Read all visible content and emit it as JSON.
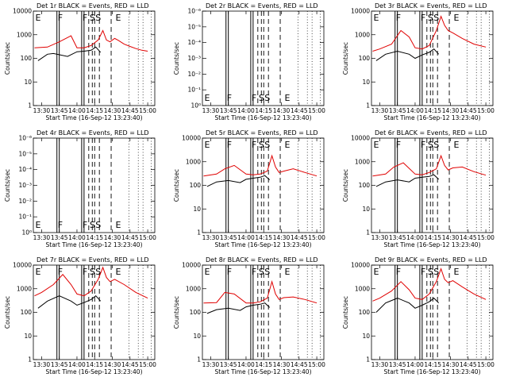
{
  "figure": {
    "xlabel": "Start Time (16-Sep-12 13:23:40)",
    "ylabel": "Counts/sec",
    "x_tick_labels": [
      "13:30",
      "13:45",
      "14:00",
      "14:15",
      "14:30",
      "14:45",
      "15:00"
    ]
  },
  "chart_data": [
    {
      "type": "line",
      "title": "Det 1r BLACK = Events, RED = LLD",
      "ylim": [
        1,
        10000
      ],
      "log": true,
      "y_tick_labels": [
        "1",
        "10",
        "100",
        "1000",
        "10000"
      ],
      "markers": [
        {
          "label": "E",
          "t": "13:24"
        },
        {
          "label": "F",
          "t": "13:43"
        },
        {
          "label": "F",
          "t": "14:04"
        },
        {
          "label": "S",
          "t": "14:10"
        },
        {
          "label": "S",
          "t": "14:15"
        },
        {
          "label": "E",
          "t": "14:32"
        }
      ],
      "series": [
        {
          "name": "RED",
          "color": "#e00000",
          "x": [
            "13:24",
            "13:35",
            "13:45",
            "13:55",
            "14:00",
            "14:06",
            "14:12",
            "14:18",
            "14:22",
            "14:25",
            "14:28",
            "14:32",
            "14:35",
            "14:40",
            "14:45",
            "14:50",
            "14:55",
            "15:00"
          ],
          "values": [
            280,
            300,
            500,
            900,
            280,
            280,
            350,
            600,
            1500,
            600,
            500,
            700,
            580,
            400,
            320,
            260,
            220,
            200
          ]
        },
        {
          "name": "BLACK",
          "color": "#000000",
          "x": [
            "13:27",
            "13:35",
            "13:40",
            "13:52",
            "14:00",
            "14:06",
            "14:12",
            "14:16",
            "14:20"
          ],
          "values": [
            80,
            150,
            160,
            120,
            190,
            200,
            220,
            300,
            180
          ]
        }
      ]
    },
    {
      "type": "line",
      "title": "Det 2r BLACK = Events, RED = LLD",
      "ylim": [
        1,
        1e-06
      ],
      "log": true,
      "y_tick_labels": [
        "10⁰",
        "10⁻¹",
        "10⁻²",
        "10⁻³",
        "10⁻⁴",
        "10⁻⁵",
        "10⁻⁶"
      ],
      "markers": [
        {
          "label": "E",
          "t": "13:24"
        },
        {
          "label": "F",
          "t": "13:43"
        },
        {
          "label": "F",
          "t": "14:04"
        },
        {
          "label": "S",
          "t": "14:10"
        },
        {
          "label": "S",
          "t": "14:15"
        },
        {
          "label": "E",
          "t": "14:32"
        }
      ],
      "series": []
    },
    {
      "type": "line",
      "title": "Det 3r BLACK = Events, RED = LLD",
      "ylim": [
        1,
        10000
      ],
      "log": true,
      "y_tick_labels": [
        "1",
        "10",
        "100",
        "1000",
        "10000"
      ],
      "markers": [
        {
          "label": "E",
          "t": "13:24"
        },
        {
          "label": "F",
          "t": "13:43"
        },
        {
          "label": "F",
          "t": "14:04"
        },
        {
          "label": "S",
          "t": "14:10"
        },
        {
          "label": "S",
          "t": "14:15"
        },
        {
          "label": "E",
          "t": "14:32"
        }
      ],
      "series": [
        {
          "name": "RED",
          "color": "#e00000",
          "x": [
            "13:24",
            "13:30",
            "13:40",
            "13:48",
            "13:55",
            "14:00",
            "14:06",
            "14:12",
            "14:18",
            "14:22",
            "14:25",
            "14:28",
            "14:32",
            "14:40",
            "14:50",
            "15:00"
          ],
          "values": [
            200,
            250,
            400,
            1500,
            800,
            280,
            250,
            350,
            1500,
            6000,
            2500,
            1500,
            1200,
            700,
            400,
            300
          ]
        },
        {
          "name": "BLACK",
          "color": "#000000",
          "x": [
            "13:27",
            "13:35",
            "13:45",
            "13:55",
            "14:00",
            "14:06",
            "14:12",
            "14:16",
            "14:20"
          ],
          "values": [
            80,
            150,
            200,
            150,
            100,
            140,
            180,
            250,
            150
          ]
        }
      ]
    },
    {
      "type": "line",
      "title": "Det 4r BLACK = Events, RED = LLD",
      "ylim": [
        1,
        1e-06
      ],
      "log": true,
      "y_tick_labels": [
        "10⁰",
        "10⁻¹",
        "10⁻²",
        "10⁻³",
        "10⁻⁴",
        "10⁻⁵",
        "10⁻⁶"
      ],
      "markers": [
        {
          "label": "E",
          "t": "13:24"
        },
        {
          "label": "F",
          "t": "13:43"
        },
        {
          "label": "F",
          "t": "14:04"
        },
        {
          "label": "S",
          "t": "14:10"
        },
        {
          "label": "S",
          "t": "14:15"
        },
        {
          "label": "E",
          "t": "14:32"
        }
      ],
      "series": []
    },
    {
      "type": "line",
      "title": "Det 5r BLACK = Events, RED = LLD",
      "ylim": [
        1,
        10000
      ],
      "log": true,
      "y_tick_labels": [
        "1",
        "10",
        "100",
        "1000",
        "10000"
      ],
      "markers": [
        {
          "label": "E",
          "t": "13:24"
        },
        {
          "label": "F",
          "t": "13:43"
        },
        {
          "label": "F",
          "t": "14:04"
        },
        {
          "label": "S",
          "t": "14:10"
        },
        {
          "label": "S",
          "t": "14:15"
        },
        {
          "label": "E",
          "t": "14:32"
        }
      ],
      "series": [
        {
          "name": "RED",
          "color": "#e00000",
          "x": [
            "13:24",
            "13:35",
            "13:42",
            "13:50",
            "14:00",
            "14:06",
            "14:12",
            "14:18",
            "14:22",
            "14:25",
            "14:28",
            "14:32",
            "14:40",
            "14:50",
            "15:00"
          ],
          "values": [
            250,
            300,
            500,
            700,
            300,
            280,
            300,
            400,
            1800,
            600,
            350,
            400,
            500,
            350,
            250
          ]
        },
        {
          "name": "BLACK",
          "color": "#000000",
          "x": [
            "13:27",
            "13:35",
            "13:45",
            "13:55",
            "14:00",
            "14:06",
            "14:12",
            "14:16",
            "14:20"
          ],
          "values": [
            90,
            140,
            160,
            130,
            180,
            200,
            220,
            260,
            170
          ]
        }
      ]
    },
    {
      "type": "line",
      "title": "Det 6r BLACK = Events, RED = LLD",
      "ylim": [
        1,
        10000
      ],
      "log": true,
      "y_tick_labels": [
        "1",
        "10",
        "100",
        "1000",
        "10000"
      ],
      "markers": [
        {
          "label": "E",
          "t": "13:24"
        },
        {
          "label": "F",
          "t": "13:43"
        },
        {
          "label": "F",
          "t": "14:04"
        },
        {
          "label": "S",
          "t": "14:10"
        },
        {
          "label": "S",
          "t": "14:15"
        },
        {
          "label": "E",
          "t": "14:32"
        }
      ],
      "series": [
        {
          "name": "RED",
          "color": "#e00000",
          "x": [
            "13:24",
            "13:35",
            "13:42",
            "13:50",
            "14:00",
            "14:06",
            "14:12",
            "14:18",
            "14:22",
            "14:25",
            "14:28",
            "14:32",
            "14:40",
            "14:50",
            "15:00"
          ],
          "values": [
            250,
            300,
            600,
            900,
            300,
            280,
            350,
            500,
            1800,
            700,
            450,
            550,
            600,
            380,
            270
          ]
        },
        {
          "name": "BLACK",
          "color": "#000000",
          "x": [
            "13:27",
            "13:35",
            "13:45",
            "13:55",
            "14:00",
            "14:06",
            "14:12",
            "14:16",
            "14:20"
          ],
          "values": [
            90,
            140,
            170,
            140,
            200,
            220,
            240,
            280,
            180
          ]
        }
      ]
    },
    {
      "type": "line",
      "title": "Det 7r BLACK = Events, RED = LLD",
      "ylim": [
        1,
        10000
      ],
      "log": true,
      "y_tick_labels": [
        "1",
        "10",
        "100",
        "1000",
        "10000"
      ],
      "markers": [
        {
          "label": "E",
          "t": "13:24"
        },
        {
          "label": "F",
          "t": "13:43"
        },
        {
          "label": "F",
          "t": "14:04"
        },
        {
          "label": "S",
          "t": "14:10"
        },
        {
          "label": "S",
          "t": "14:15"
        },
        {
          "label": "E",
          "t": "14:32"
        }
      ],
      "series": [
        {
          "name": "RED",
          "color": "#e00000",
          "x": [
            "13:24",
            "13:30",
            "13:40",
            "13:48",
            "13:55",
            "14:00",
            "14:06",
            "14:12",
            "14:18",
            "14:22",
            "14:25",
            "14:28",
            "14:32",
            "14:40",
            "14:50",
            "15:00"
          ],
          "values": [
            500,
            700,
            1500,
            4000,
            1500,
            600,
            500,
            800,
            2500,
            8000,
            3000,
            2000,
            2500,
            1500,
            700,
            400
          ]
        },
        {
          "name": "BLACK",
          "color": "#000000",
          "x": [
            "13:27",
            "13:35",
            "13:45",
            "13:55",
            "14:00",
            "14:06",
            "14:12",
            "14:16",
            "14:20"
          ],
          "values": [
            150,
            300,
            500,
            300,
            200,
            260,
            350,
            500,
            300
          ]
        }
      ]
    },
    {
      "type": "line",
      "title": "Det 8r BLACK = Events, RED = LLD",
      "ylim": [
        1,
        10000
      ],
      "log": true,
      "y_tick_labels": [
        "1",
        "10",
        "100",
        "1000",
        "10000"
      ],
      "markers": [
        {
          "label": "E",
          "t": "13:24"
        },
        {
          "label": "F",
          "t": "13:43"
        },
        {
          "label": "F",
          "t": "14:04"
        },
        {
          "label": "S",
          "t": "14:10"
        },
        {
          "label": "S",
          "t": "14:15"
        },
        {
          "label": "E",
          "t": "14:32"
        }
      ],
      "series": [
        {
          "name": "RED",
          "color": "#e00000",
          "x": [
            "13:24",
            "13:35",
            "13:42",
            "13:50",
            "14:00",
            "14:06",
            "14:12",
            "14:18",
            "14:22",
            "14:25",
            "14:28",
            "14:32",
            "14:40",
            "14:50",
            "15:00"
          ],
          "values": [
            250,
            260,
            700,
            600,
            250,
            250,
            280,
            400,
            2000,
            600,
            350,
            420,
            450,
            350,
            250
          ]
        },
        {
          "name": "BLACK",
          "color": "#000000",
          "x": [
            "13:27",
            "13:35",
            "13:45",
            "13:55",
            "14:00",
            "14:06",
            "14:12",
            "14:16",
            "14:20"
          ],
          "values": [
            90,
            130,
            150,
            120,
            170,
            200,
            220,
            250,
            160
          ]
        }
      ]
    },
    {
      "type": "line",
      "title": "Det 9r BLACK = Events, RED = LLD",
      "ylim": [
        1,
        10000
      ],
      "log": true,
      "y_tick_labels": [
        "1",
        "10",
        "100",
        "1000",
        "10000"
      ],
      "markers": [
        {
          "label": "E",
          "t": "13:24"
        },
        {
          "label": "F",
          "t": "13:43"
        },
        {
          "label": "F",
          "t": "14:04"
        },
        {
          "label": "S",
          "t": "14:10"
        },
        {
          "label": "S",
          "t": "14:15"
        },
        {
          "label": "E",
          "t": "14:32"
        }
      ],
      "series": [
        {
          "name": "RED",
          "color": "#e00000",
          "x": [
            "13:24",
            "13:30",
            "13:40",
            "13:48",
            "13:55",
            "14:00",
            "14:06",
            "14:12",
            "14:18",
            "14:22",
            "14:25",
            "14:28",
            "14:32",
            "14:40",
            "14:50",
            "15:00"
          ],
          "values": [
            300,
            400,
            800,
            2000,
            900,
            400,
            350,
            600,
            2000,
            7000,
            2500,
            1800,
            2200,
            1200,
            600,
            350
          ]
        },
        {
          "name": "BLACK",
          "color": "#000000",
          "x": [
            "13:27",
            "13:35",
            "13:45",
            "13:55",
            "14:00",
            "14:06",
            "14:12",
            "14:16",
            "14:20"
          ],
          "values": [
            100,
            250,
            400,
            250,
            150,
            200,
            280,
            400,
            250
          ]
        }
      ]
    }
  ]
}
